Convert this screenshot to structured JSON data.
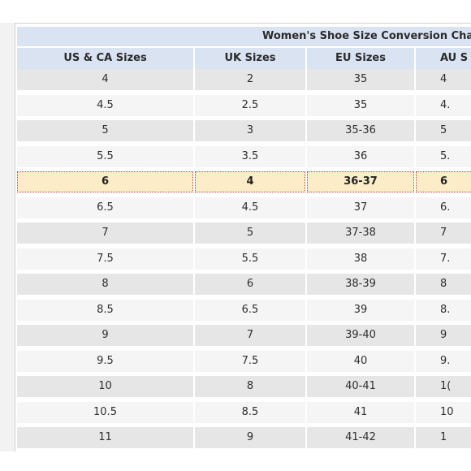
{
  "table": {
    "title": "Women's Shoe Size Conversion Chart",
    "headers": [
      "US & CA Sizes",
      "UK Sizes",
      "EU Sizes",
      "AU S"
    ],
    "rows": [
      {
        "us": "4",
        "uk": "2",
        "eu": "35",
        "au": "4"
      },
      {
        "us": "4.5",
        "uk": "2.5",
        "eu": "35",
        "au": "4."
      },
      {
        "us": "5",
        "uk": "3",
        "eu": "35-36",
        "au": "5"
      },
      {
        "us": "5.5",
        "uk": "3.5",
        "eu": "36",
        "au": "5."
      },
      {
        "us": "6",
        "uk": "4",
        "eu": "36-37",
        "au": "6"
      },
      {
        "us": "6.5",
        "uk": "4.5",
        "eu": "37",
        "au": "6."
      },
      {
        "us": "7",
        "uk": "5",
        "eu": "37-38",
        "au": "7"
      },
      {
        "us": "7.5",
        "uk": "5.5",
        "eu": "38",
        "au": "7."
      },
      {
        "us": "8",
        "uk": "6",
        "eu": "38-39",
        "au": "8"
      },
      {
        "us": "8.5",
        "uk": "6.5",
        "eu": "39",
        "au": "8."
      },
      {
        "us": "9",
        "uk": "7",
        "eu": "39-40",
        "au": "9"
      },
      {
        "us": "9.5",
        "uk": "7.5",
        "eu": "40",
        "au": "9."
      },
      {
        "us": "10",
        "uk": "8",
        "eu": "40-41",
        "au": "1("
      },
      {
        "us": "10.5",
        "uk": "8.5",
        "eu": "41",
        "au": "10"
      },
      {
        "us": "11",
        "uk": "9",
        "eu": "41-42",
        "au": "1"
      }
    ],
    "highlighted_row": 4
  },
  "colors": {
    "header_bg": "#d9e3f2",
    "row_shade": "#e6e6e6",
    "row_plain": "#f5f5f5",
    "highlight_bg": "#fcecc7",
    "highlight_border": "#c0404a"
  }
}
